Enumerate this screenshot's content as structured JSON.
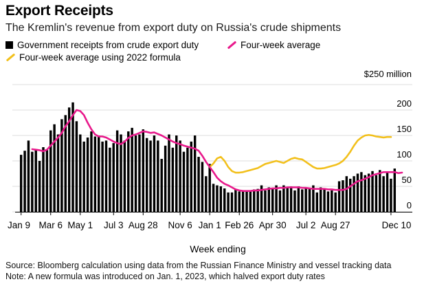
{
  "title": "Export Receipts",
  "subtitle": "The Kremlin's revenue from export duty on Russia's crude shipments",
  "footnotes": {
    "source": "Source: Bloomberg calculation using data from the Russian Finance Ministry and vessel tracking data",
    "note": "Note: A new formula was introduced on Jan. 1, 2023, which halved export duty rates"
  },
  "colors": {
    "bars": "#000000",
    "avg": "#e8198b",
    "avg2022": "#f2c01c",
    "grid": "#dcdcdc"
  },
  "chart_data": {
    "type": "bar",
    "title": "Export Receipts",
    "xlabel": "Week ending",
    "ylabel": "$ million",
    "y_unit_label": "$250 million",
    "ylim": [
      0,
      250
    ],
    "y_ticks": [
      0,
      50,
      100,
      150,
      200
    ],
    "grid": true,
    "x_tick_labels": [
      "Jan 9",
      "Mar 6",
      "May 1",
      "Jul 3",
      "Aug 28",
      "Nov 6",
      "Jan 1",
      "Feb 26",
      "Apr 30",
      "Jul 2",
      "Aug 27",
      "Dec 10"
    ],
    "x_tick_indices": [
      0,
      8,
      16,
      25,
      33,
      43,
      51,
      59,
      68,
      77,
      85,
      100
    ],
    "legend": [
      "Government receipts from crude export duty",
      "Four-week average",
      "Four-week average using 2022 formula"
    ],
    "series": [
      {
        "name": "Government receipts from crude export duty",
        "type": "bar",
        "values": [
          112,
          120,
          140,
          118,
          122,
          100,
          127,
          122,
          160,
          172,
          152,
          182,
          190,
          205,
          215,
          178,
          152,
          138,
          146,
          158,
          148,
          150,
          138,
          140,
          126,
          135,
          160,
          152,
          140,
          158,
          165,
          150,
          152,
          162,
          145,
          140,
          150,
          140,
          104,
          130,
          152,
          126,
          150,
          140,
          118,
          126,
          138,
          150,
          108,
          98,
          70,
          94,
          55,
          52,
          50,
          46,
          38,
          38,
          44,
          40,
          42,
          40,
          42,
          44,
          45,
          52,
          42,
          48,
          45,
          52,
          42,
          52,
          48,
          50,
          42,
          50,
          44,
          48,
          45,
          52,
          38,
          48,
          45,
          40,
          42,
          38,
          60,
          62,
          70,
          65,
          70,
          75,
          78,
          72,
          75,
          80,
          72,
          82,
          70,
          78,
          65,
          85
        ]
      },
      {
        "name": "Four-week average",
        "type": "line",
        "start_index": 3,
        "values": [
          123,
          122,
          121,
          119,
          122,
          130,
          138,
          146,
          155,
          168,
          178,
          190,
          200,
          198,
          190,
          175,
          162,
          152,
          148,
          148,
          146,
          142,
          138,
          135,
          133,
          138,
          145,
          150,
          152,
          155,
          158,
          157,
          155,
          156,
          153,
          150,
          146,
          142,
          138,
          135,
          133,
          130,
          128,
          126,
          124,
          120,
          110,
          98,
          88,
          78,
          67,
          60,
          55,
          52,
          48,
          44,
          42,
          41,
          41,
          41,
          42,
          42,
          43,
          44,
          45,
          46,
          46,
          47,
          47,
          48,
          48,
          48,
          48,
          47,
          47,
          46,
          45,
          45,
          45,
          45,
          44,
          44,
          43,
          43,
          43,
          45,
          50,
          55,
          60,
          62,
          65,
          68,
          72,
          74,
          76,
          78,
          78,
          78,
          78,
          76,
          77
        ]
      },
      {
        "name": "Four-week average using 2022 formula",
        "type": "line",
        "start_index": 51,
        "values": [
          88,
          95,
          105,
          108,
          100,
          88,
          80,
          77,
          77,
          78,
          80,
          82,
          84,
          86,
          90,
          94,
          96,
          98,
          100,
          98,
          96,
          100,
          104,
          106,
          104,
          103,
          98,
          93,
          88,
          85,
          85,
          86,
          88,
          90,
          92,
          95,
          100,
          108,
          118,
          130,
          140,
          146,
          150,
          151,
          150,
          148,
          147,
          146,
          147,
          147
        ]
      }
    ]
  }
}
